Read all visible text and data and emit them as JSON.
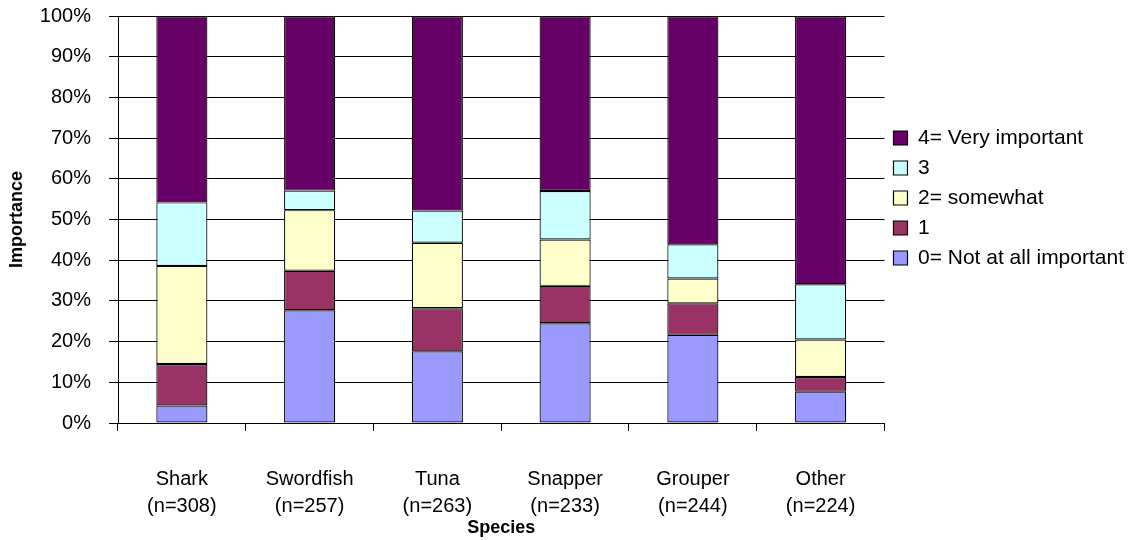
{
  "chart_data": {
    "type": "bar",
    "stacked": true,
    "xlabel": "Species",
    "ylabel": "Importance",
    "categories": [
      "Shark\n(n=308)",
      "Swordfish\n(n=257)",
      "Tuna\n(n=263)",
      "Snapper\n(n=233)",
      "Grouper\n(n=244)",
      "Other\n(n=224)"
    ],
    "series": [
      {
        "name": "0= Not at all important",
        "color": "#9999ff",
        "values": [
          4.3,
          27.7,
          17.6,
          24.5,
          21.7,
          7.7
        ]
      },
      {
        "name": "1",
        "color": "#993366",
        "values": [
          10.2,
          9.7,
          10.6,
          9.2,
          7.7,
          3.6
        ]
      },
      {
        "name": "2= somewhat",
        "color": "#ffffcc",
        "values": [
          24.1,
          14.9,
          16.1,
          11.4,
          6.1,
          9.2
        ]
      },
      {
        "name": "3",
        "color": "#ccffff",
        "values": [
          15.6,
          4.8,
          7.9,
          11.9,
          8.4,
          13.6
        ]
      },
      {
        "name": "4= Very important",
        "color": "#660066",
        "values": [
          45.8,
          42.9,
          47.8,
          43.0,
          56.1,
          65.9
        ]
      }
    ],
    "ylim": [
      0,
      100
    ],
    "yticks": [
      {
        "value": 0,
        "label": "0%"
      },
      {
        "value": 10,
        "label": "10%"
      },
      {
        "value": 20,
        "label": "20%"
      },
      {
        "value": 30,
        "label": "30%"
      },
      {
        "value": 40,
        "label": "40%"
      },
      {
        "value": 50,
        "label": "50%"
      },
      {
        "value": 60,
        "label": "60%"
      },
      {
        "value": 70,
        "label": "70%"
      },
      {
        "value": 80,
        "label": "80%"
      },
      {
        "value": 90,
        "label": "90%"
      },
      {
        "value": 100,
        "label": "100%"
      }
    ],
    "grid": "y",
    "legend": "right"
  }
}
